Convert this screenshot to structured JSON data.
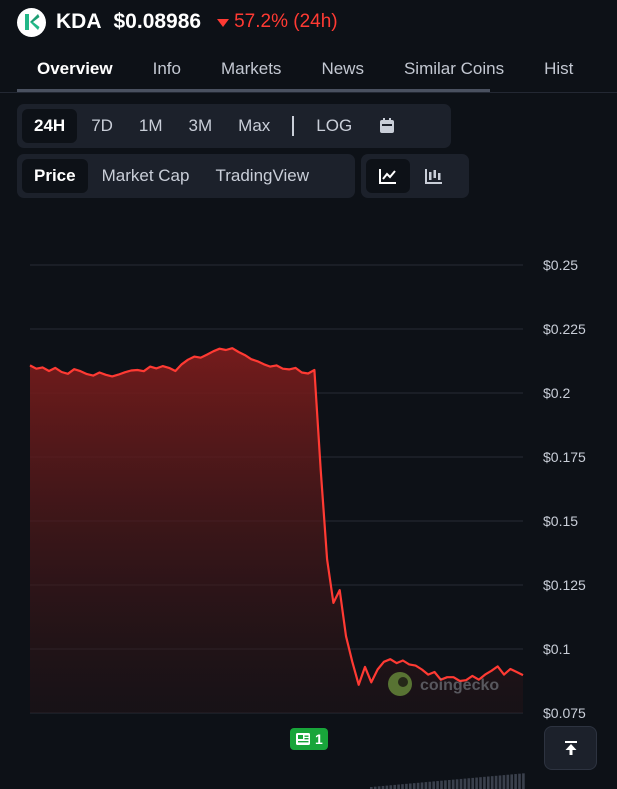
{
  "header": {
    "symbol": "KDA",
    "price": "$0.08986",
    "change": "57.2% (24h)",
    "change_color": "#ff3a33",
    "logo_icon": "kadena-logo-icon"
  },
  "tabs": [
    {
      "label": "Overview",
      "active": true
    },
    {
      "label": "Info",
      "active": false
    },
    {
      "label": "Markets",
      "active": false
    },
    {
      "label": "News",
      "active": false
    },
    {
      "label": "Similar Coins",
      "active": false
    },
    {
      "label": "Hist",
      "active": false
    }
  ],
  "range_buttons": [
    {
      "label": "24H",
      "selected": true
    },
    {
      "label": "7D",
      "selected": false
    },
    {
      "label": "1M",
      "selected": false
    },
    {
      "label": "3M",
      "selected": false
    },
    {
      "label": "Max",
      "selected": false
    }
  ],
  "log_label": "LOG",
  "calendar_icon": "calendar-icon",
  "metric_buttons": [
    {
      "label": "Price",
      "selected": true
    },
    {
      "label": "Market Cap",
      "selected": false
    },
    {
      "label": "TradingView",
      "selected": false
    }
  ],
  "chart_type_icons": {
    "line": "line-chart-icon",
    "candle": "candlestick-icon"
  },
  "watermark": "coingecko",
  "news_badge": {
    "icon": "newspaper-icon",
    "count": "1"
  },
  "scroll_top_icon": "arrow-up-to-top-icon",
  "chart_data": {
    "type": "area",
    "title": "",
    "xlabel": "",
    "ylabel": "",
    "yticks": [
      "$0.25",
      "$0.225",
      "$0.2",
      "$0.175",
      "$0.15",
      "$0.125",
      "$0.1",
      "$0.075"
    ],
    "ytick_values": [
      0.25,
      0.225,
      0.2,
      0.175,
      0.15,
      0.125,
      0.1,
      0.075
    ],
    "ylim": [
      0.075,
      0.25
    ],
    "grid": true,
    "line_color": "#ff3a33",
    "series": [
      {
        "values": [
          0.2108,
          0.2095,
          0.21,
          0.2086,
          0.2098,
          0.2082,
          0.2075,
          0.2093,
          0.2085,
          0.2074,
          0.2068,
          0.208,
          0.2071,
          0.2065,
          0.2072,
          0.2081,
          0.2088,
          0.209,
          0.2085,
          0.2103,
          0.2096,
          0.2105,
          0.2098,
          0.2086,
          0.2112,
          0.213,
          0.2142,
          0.2138,
          0.215,
          0.2163,
          0.2173,
          0.2168,
          0.2175,
          0.216,
          0.2148,
          0.2132,
          0.2124,
          0.2112,
          0.2103,
          0.2108,
          0.2095,
          0.2092,
          0.2098,
          0.208,
          0.2076,
          0.209,
          0.17,
          0.135,
          0.118,
          0.123,
          0.105,
          0.095,
          0.086,
          0.093,
          0.087,
          0.092,
          0.095,
          0.096,
          0.0945,
          0.0955,
          0.094,
          0.0935,
          0.092,
          0.09,
          0.091,
          0.088,
          0.089,
          0.089,
          0.0875,
          0.0878,
          0.0895,
          0.088,
          0.09,
          0.0915,
          0.0932,
          0.09,
          0.0922,
          0.091,
          0.0898
        ]
      }
    ]
  }
}
